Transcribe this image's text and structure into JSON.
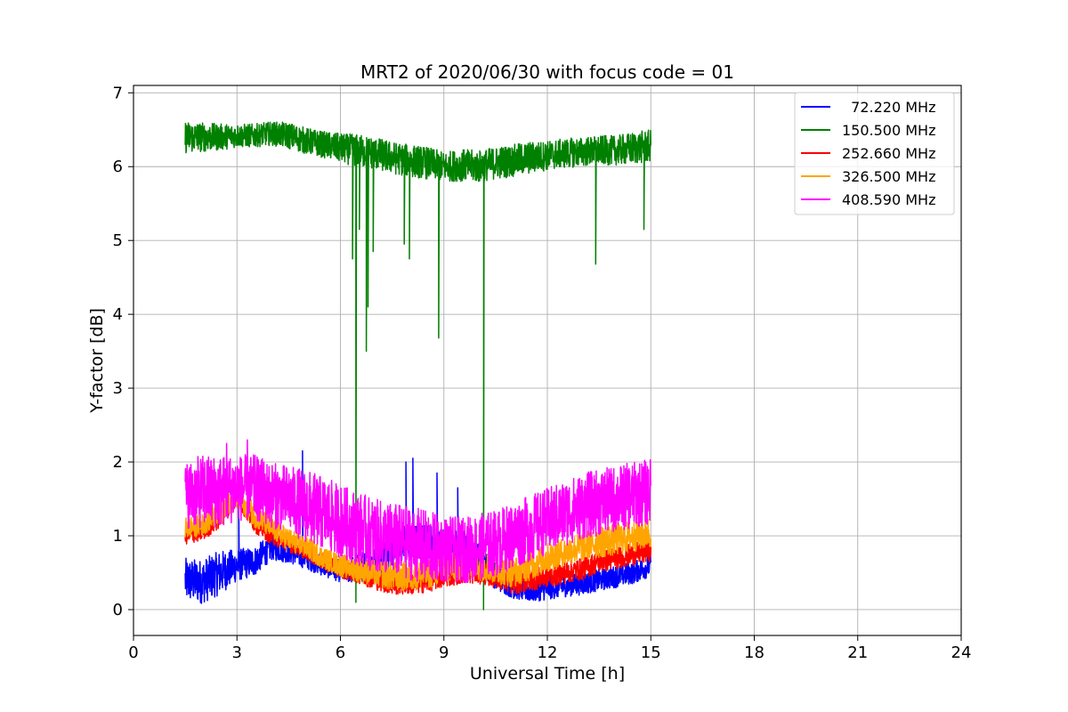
{
  "chart_data": {
    "type": "line",
    "title": "MRT2 of 2020/06/30 with focus code = 01",
    "xlabel": "Universal Time [h]",
    "ylabel": "Y-factor [dB]",
    "xlim": [
      0,
      24
    ],
    "ylim": [
      -0.35,
      7.1
    ],
    "xticks": [
      0,
      3,
      6,
      9,
      12,
      15,
      18,
      21,
      24
    ],
    "yticks": [
      0,
      1,
      2,
      3,
      4,
      5,
      6,
      7
    ],
    "grid": true,
    "legend_position": "upper-right",
    "series": [
      {
        "name": "  72.220 MHz",
        "color": "#0000ff",
        "x": [
          1.5,
          2.0,
          2.5,
          3.0,
          3.5,
          4.0,
          4.5,
          5.0,
          5.5,
          6.0,
          6.5,
          7.0,
          7.5,
          8.0,
          8.5,
          9.0,
          9.5,
          10.0,
          10.5,
          11.0,
          11.5,
          12.0,
          12.5,
          13.0,
          13.5,
          14.0,
          14.5,
          15.0
        ],
        "center": [
          0.4,
          0.38,
          0.5,
          0.6,
          0.65,
          0.85,
          0.78,
          0.7,
          0.6,
          0.52,
          0.55,
          0.65,
          0.8,
          0.95,
          0.9,
          0.88,
          0.85,
          0.7,
          0.45,
          0.3,
          0.25,
          0.28,
          0.32,
          0.35,
          0.4,
          0.45,
          0.5,
          0.6
        ],
        "spread": [
          0.3,
          0.3,
          0.3,
          0.22,
          0.2,
          0.18,
          0.15,
          0.15,
          0.15,
          0.15,
          0.2,
          0.22,
          0.22,
          0.25,
          0.25,
          0.22,
          0.25,
          0.2,
          0.18,
          0.15,
          0.15,
          0.15,
          0.15,
          0.15,
          0.15,
          0.15,
          0.15,
          0.15
        ],
        "spikes": [
          [
            4.9,
            2.15
          ],
          [
            7.9,
            2.0
          ],
          [
            8.1,
            2.05
          ],
          [
            8.8,
            1.85
          ],
          [
            9.4,
            1.65
          ],
          [
            3.05,
            1.5
          ]
        ]
      },
      {
        "name": "150.500 MHz",
        "color": "#008000",
        "x": [
          1.5,
          2.0,
          2.5,
          3.0,
          3.5,
          4.0,
          4.5,
          5.0,
          5.5,
          6.0,
          6.5,
          7.0,
          7.5,
          8.0,
          8.5,
          9.0,
          9.5,
          10.0,
          10.5,
          11.0,
          11.5,
          12.0,
          12.5,
          13.0,
          13.5,
          14.0,
          14.5,
          15.0
        ],
        "center": [
          6.4,
          6.4,
          6.4,
          6.42,
          6.42,
          6.45,
          6.42,
          6.35,
          6.3,
          6.25,
          6.22,
          6.18,
          6.12,
          6.08,
          6.05,
          6.0,
          6.02,
          6.0,
          6.05,
          6.08,
          6.12,
          6.15,
          6.18,
          6.2,
          6.22,
          6.22,
          6.25,
          6.28
        ],
        "spread": [
          0.22,
          0.2,
          0.18,
          0.16,
          0.16,
          0.16,
          0.18,
          0.18,
          0.18,
          0.2,
          0.22,
          0.22,
          0.22,
          0.22,
          0.22,
          0.2,
          0.22,
          0.22,
          0.22,
          0.22,
          0.22,
          0.2,
          0.2,
          0.2,
          0.2,
          0.2,
          0.22,
          0.22
        ],
        "spikes": [
          [
            6.35,
            4.75
          ],
          [
            6.45,
            0.1
          ],
          [
            6.55,
            5.15
          ],
          [
            6.75,
            3.5
          ],
          [
            6.8,
            4.1
          ],
          [
            6.95,
            4.85
          ],
          [
            7.85,
            4.95
          ],
          [
            8.0,
            4.75
          ],
          [
            8.85,
            3.68
          ],
          [
            10.15,
            0.0
          ],
          [
            13.4,
            4.68
          ],
          [
            14.8,
            5.15
          ]
        ]
      },
      {
        "name": "252.660 MHz",
        "color": "#ff0000",
        "x": [
          1.5,
          2.0,
          2.5,
          3.0,
          3.5,
          4.0,
          4.5,
          5.0,
          5.5,
          6.0,
          6.5,
          7.0,
          7.5,
          8.0,
          8.5,
          9.0,
          9.5,
          10.0,
          10.5,
          11.0,
          11.5,
          12.0,
          12.5,
          13.0,
          13.5,
          14.0,
          14.5,
          15.0
        ],
        "center": [
          1.0,
          1.05,
          1.25,
          1.5,
          1.2,
          1.0,
          0.9,
          0.8,
          0.65,
          0.55,
          0.48,
          0.42,
          0.35,
          0.35,
          0.38,
          0.45,
          0.5,
          0.5,
          0.45,
          0.35,
          0.4,
          0.45,
          0.5,
          0.55,
          0.65,
          0.7,
          0.75,
          0.8
        ],
        "spread": [
          0.12,
          0.12,
          0.15,
          0.1,
          0.15,
          0.12,
          0.12,
          0.12,
          0.12,
          0.12,
          0.12,
          0.15,
          0.15,
          0.15,
          0.15,
          0.15,
          0.15,
          0.15,
          0.15,
          0.15,
          0.15,
          0.15,
          0.15,
          0.15,
          0.15,
          0.15,
          0.15,
          0.15
        ],
        "spikes": []
      },
      {
        "name": "326.500 MHz",
        "color": "#ffa500",
        "x": [
          1.5,
          2.0,
          2.5,
          3.0,
          3.5,
          4.0,
          4.5,
          5.0,
          5.5,
          6.0,
          6.5,
          7.0,
          7.5,
          8.0,
          8.5,
          9.0,
          9.5,
          10.0,
          10.5,
          11.0,
          11.5,
          12.0,
          12.5,
          13.0,
          13.5,
          14.0,
          14.5,
          15.0
        ],
        "center": [
          1.1,
          1.15,
          1.35,
          1.5,
          1.3,
          1.1,
          0.95,
          0.85,
          0.7,
          0.6,
          0.55,
          0.5,
          0.45,
          0.45,
          0.48,
          0.55,
          0.6,
          0.6,
          0.55,
          0.5,
          0.6,
          0.7,
          0.78,
          0.85,
          0.92,
          0.95,
          1.0,
          1.05
        ],
        "spread": [
          0.15,
          0.15,
          0.18,
          0.12,
          0.18,
          0.15,
          0.15,
          0.15,
          0.15,
          0.15,
          0.18,
          0.18,
          0.2,
          0.2,
          0.2,
          0.2,
          0.2,
          0.2,
          0.2,
          0.2,
          0.2,
          0.2,
          0.2,
          0.2,
          0.22,
          0.22,
          0.22,
          0.22
        ],
        "spikes": []
      },
      {
        "name": "408.590 MHz",
        "color": "#ff00ff",
        "x": [
          1.5,
          2.0,
          2.5,
          3.0,
          3.5,
          4.0,
          4.5,
          5.0,
          5.5,
          6.0,
          6.5,
          7.0,
          7.5,
          8.0,
          8.5,
          9.0,
          9.5,
          10.0,
          10.5,
          11.0,
          11.5,
          12.0,
          12.5,
          13.0,
          13.5,
          14.0,
          14.5,
          15.0
        ],
        "center": [
          1.55,
          1.6,
          1.6,
          1.65,
          1.65,
          1.55,
          1.5,
          1.4,
          1.3,
          1.2,
          1.1,
          1.0,
          0.95,
          0.9,
          0.85,
          0.82,
          0.8,
          0.85,
          0.9,
          1.0,
          1.1,
          1.2,
          1.3,
          1.4,
          1.45,
          1.5,
          1.55,
          1.6
        ],
        "spread": [
          0.45,
          0.5,
          0.5,
          0.45,
          0.45,
          0.45,
          0.45,
          0.5,
          0.5,
          0.5,
          0.5,
          0.5,
          0.5,
          0.5,
          0.5,
          0.45,
          0.45,
          0.45,
          0.45,
          0.45,
          0.45,
          0.45,
          0.45,
          0.45,
          0.45,
          0.45,
          0.45,
          0.45
        ],
        "spikes": [
          [
            3.3,
            2.3
          ],
          [
            2.7,
            2.25
          ]
        ]
      }
    ]
  }
}
